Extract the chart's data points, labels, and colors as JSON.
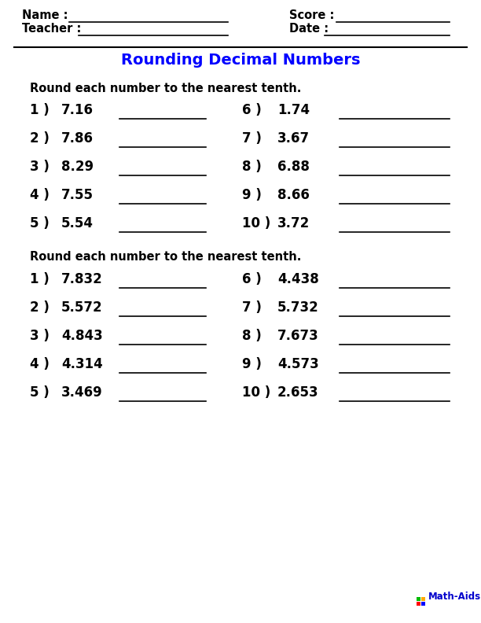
{
  "title": "Rounding Decimal Numbers",
  "title_color": "#0000FF",
  "bg_color": "#FFFFFF",
  "section1_instruction": "Round each number to the nearest tenth.",
  "section1_left": [
    {
      "num": "1 )",
      "val": "7.16"
    },
    {
      "num": "2 )",
      "val": "7.86"
    },
    {
      "num": "3 )",
      "val": "8.29"
    },
    {
      "num": "4 )",
      "val": "7.55"
    },
    {
      "num": "5 )",
      "val": "5.54"
    }
  ],
  "section1_right": [
    {
      "num": "6 )",
      "val": "1.74"
    },
    {
      "num": "7 )",
      "val": "3.67"
    },
    {
      "num": "8 )",
      "val": "6.88"
    },
    {
      "num": "9 )",
      "val": "8.66"
    },
    {
      "num": "10 )",
      "val": "3.72"
    }
  ],
  "section2_instruction": "Round each number to the nearest tenth.",
  "section2_left": [
    {
      "num": "1 )",
      "val": "7.832"
    },
    {
      "num": "2 )",
      "val": "5.572"
    },
    {
      "num": "3 )",
      "val": "4.843"
    },
    {
      "num": "4 )",
      "val": "4.314"
    },
    {
      "num": "5 )",
      "val": "3.469"
    }
  ],
  "section2_right": [
    {
      "num": "6 )",
      "val": "4.438"
    },
    {
      "num": "7 )",
      "val": "5.732"
    },
    {
      "num": "8 )",
      "val": "7.673"
    },
    {
      "num": "9 )",
      "val": "4.573"
    },
    {
      "num": "10 )",
      "val": "2.653"
    }
  ],
  "watermark": "Math-Aids.Com",
  "watermark_color": "#0000CC",
  "icon_colors": [
    [
      "#FF0000",
      "#0000FF"
    ],
    [
      "#00BB00",
      "#FFAA00"
    ]
  ]
}
